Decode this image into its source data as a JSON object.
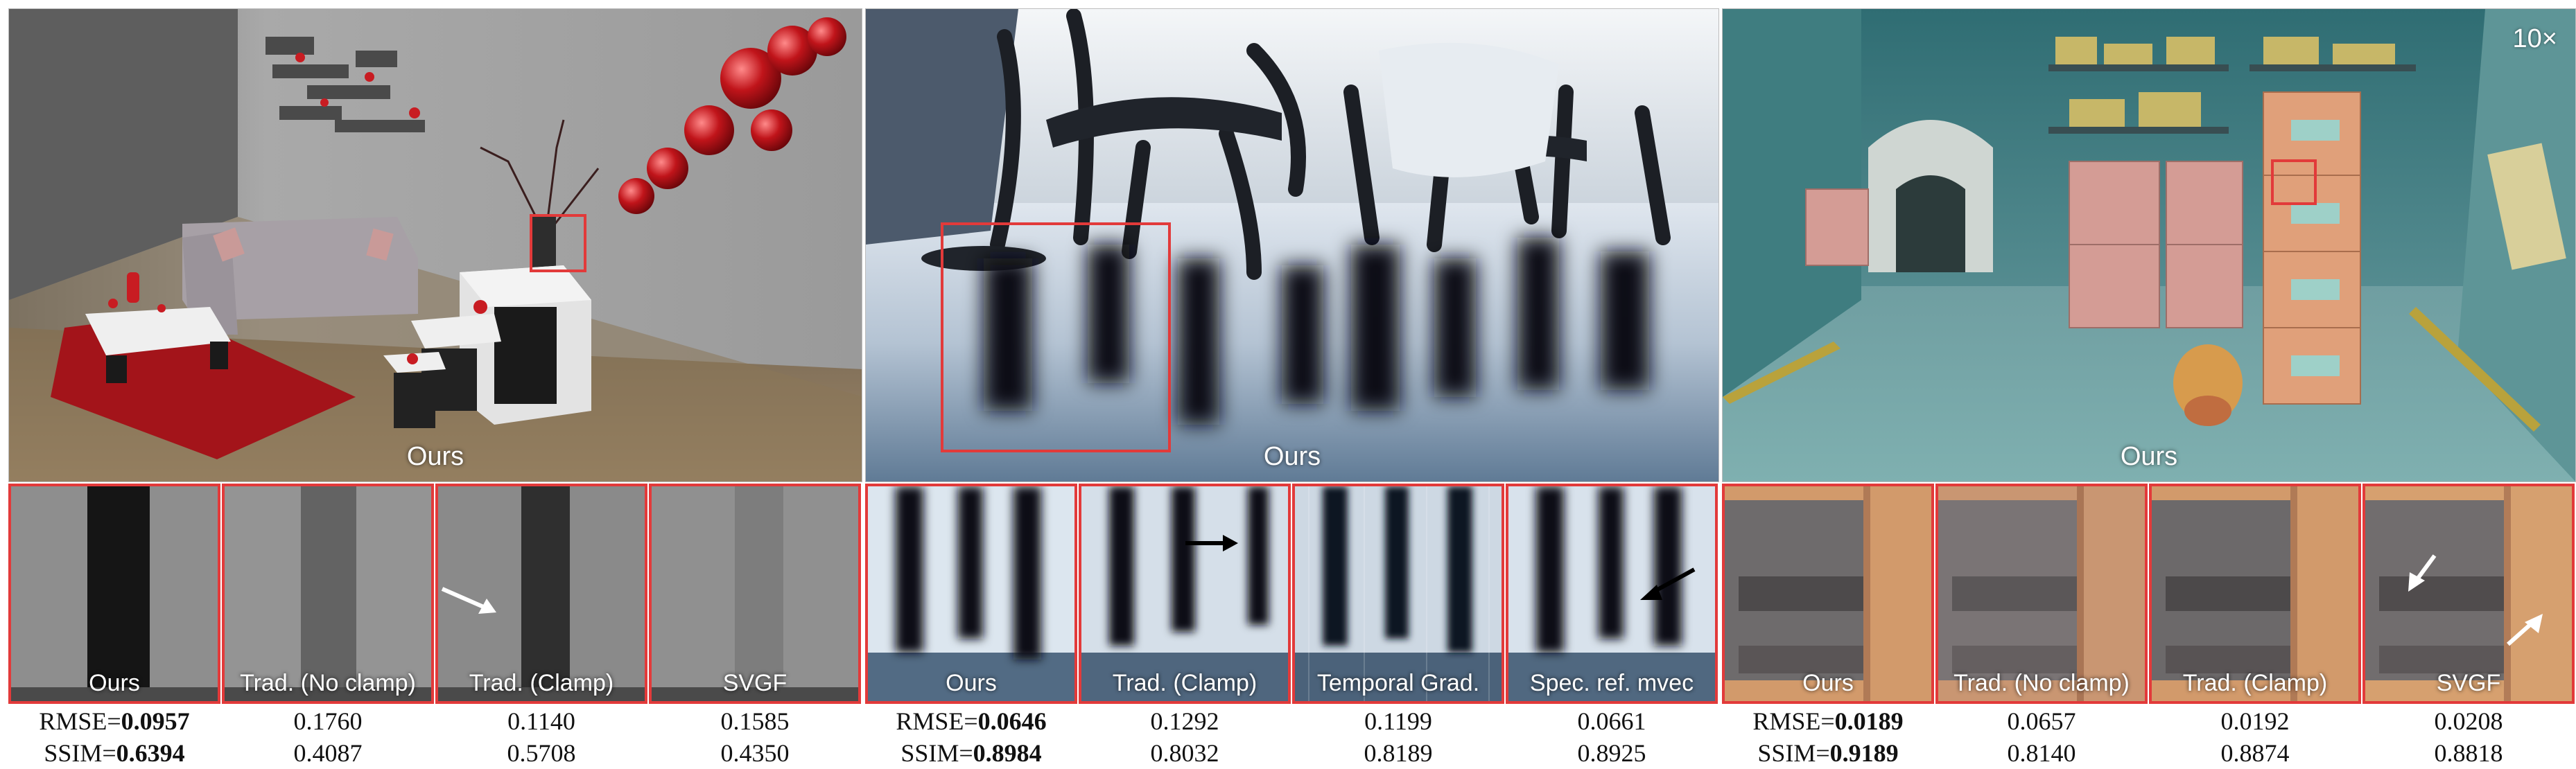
{
  "figure": {
    "panels": [
      {
        "main_label": "Ours",
        "crops": [
          "Ours",
          "Trad. (No clamp)",
          "Trad. (Clamp)",
          "SVGF"
        ],
        "rmse_label": "RMSE=",
        "rmse": [
          "0.0957",
          "0.1760",
          "0.1140",
          "0.1585"
        ],
        "ssim_label": "SSIM=",
        "ssim": [
          "0.6394",
          "0.4087",
          "0.5708",
          "0.4350"
        ]
      },
      {
        "main_label": "Ours",
        "crops": [
          "Ours",
          "Trad. (Clamp)",
          "Temporal Grad.",
          "Spec. ref. mvec"
        ],
        "rmse_label": "RMSE=",
        "rmse": [
          "0.0646",
          "0.1292",
          "0.1199",
          "0.0661"
        ],
        "ssim_label": "SSIM=",
        "ssim": [
          "0.8984",
          "0.8032",
          "0.8189",
          "0.8925"
        ]
      },
      {
        "main_label": "Ours",
        "zoom_tag": "10×",
        "crops": [
          "Ours",
          "Trad. (No clamp)",
          "Trad. (Clamp)",
          "SVGF"
        ],
        "rmse_label": "RMSE=",
        "rmse": [
          "0.0189",
          "0.0657",
          "0.0192",
          "0.0208"
        ],
        "ssim_label": "SSIM=",
        "ssim": [
          "0.9189",
          "0.8140",
          "0.8874",
          "0.8818"
        ]
      }
    ]
  }
}
